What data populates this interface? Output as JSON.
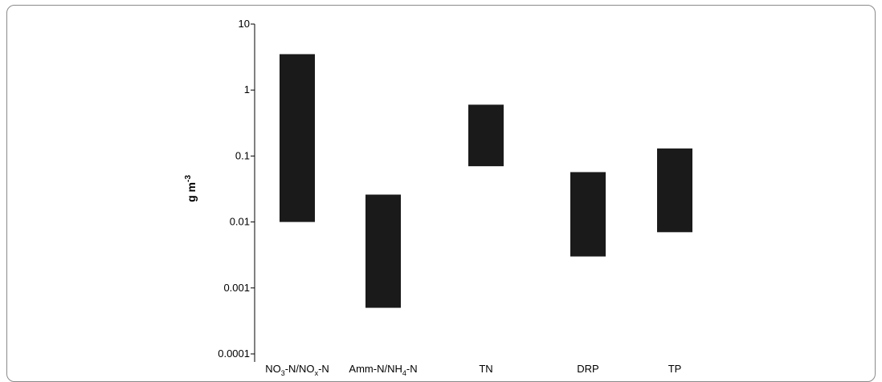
{
  "chart_data": {
    "type": "bar",
    "subtype": "floating-range",
    "title": "",
    "xlabel": "",
    "ylabel": "g m",
    "ylabel_superscript": "-3",
    "yscale": "log",
    "ylim": [
      0.0001,
      10
    ],
    "yticks": [
      "10",
      "1",
      "0.1",
      "0.01",
      "0.001",
      "0.0001"
    ],
    "grid": false,
    "legend": "none",
    "bar_color": "#1a1a1a",
    "categories": [
      {
        "main": "NO",
        "sub1": "3",
        "mid": "-N/NO",
        "sub2": "x",
        "tail": "-N"
      },
      {
        "main": "Amm-N/NH",
        "sub1": "4",
        "mid": "-N",
        "sub2": "",
        "tail": ""
      },
      {
        "main": "TN",
        "sub1": "",
        "mid": "",
        "sub2": "",
        "tail": ""
      },
      {
        "main": "DRP",
        "sub1": "",
        "mid": "",
        "sub2": "",
        "tail": ""
      },
      {
        "main": "TP",
        "sub1": "",
        "mid": "",
        "sub2": "",
        "tail": ""
      }
    ],
    "ranges": [
      {
        "low": 0.01,
        "high": 3.5
      },
      {
        "low": 0.0005,
        "high": 0.026
      },
      {
        "low": 0.07,
        "high": 0.6
      },
      {
        "low": 0.003,
        "high": 0.057
      },
      {
        "low": 0.007,
        "high": 0.13
      }
    ]
  }
}
